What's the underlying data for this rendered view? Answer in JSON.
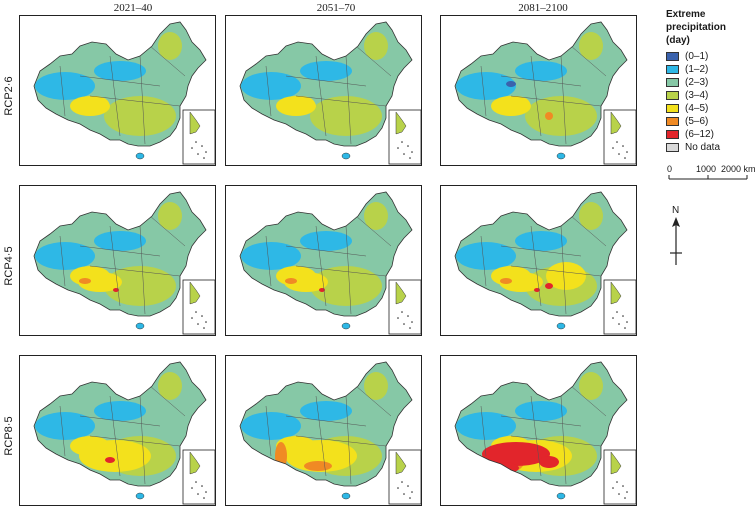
{
  "columns": [
    "2021–40",
    "2051–70",
    "2081–2100"
  ],
  "rows": [
    "RCP2·6",
    "RCP4·5",
    "RCP8·5"
  ],
  "legend": {
    "title_lines": [
      "Extreme",
      "precipitation",
      "(day)"
    ],
    "items": [
      {
        "label": "(0–1)",
        "color": "#3a62ad"
      },
      {
        "label": "(1–2)",
        "color": "#2eb8e6"
      },
      {
        "label": "(2–3)",
        "color": "#86c8a6"
      },
      {
        "label": "(3–4)",
        "color": "#b8d24a"
      },
      {
        "label": "(4–5)",
        "color": "#f3e11c"
      },
      {
        "label": "(5–6)",
        "color": "#f08a24"
      },
      {
        "label": "(6–12)",
        "color": "#e2252b"
      },
      {
        "label": "No data",
        "color": "#d9d9d9"
      }
    ]
  },
  "scale": {
    "labels": [
      "0",
      "1000",
      "2000 km"
    ]
  },
  "north": {
    "label": "N"
  }
}
